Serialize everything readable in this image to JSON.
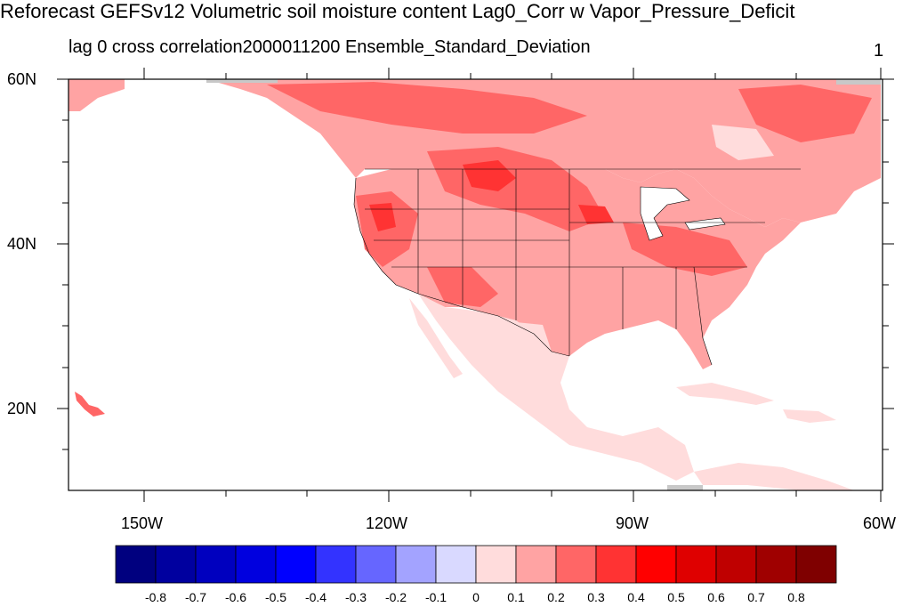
{
  "title": "Reforecast GEFSv12 Volumetric soil moisture content Lag0_Corr w Vapor_Pressure_Deficit",
  "subtitle_left": "lag 0 cross correlation2000011200 Ensemble_Standard_Deviation",
  "subtitle_right": "1",
  "map": {
    "lat_labels": [
      "60N",
      "40N",
      "20N"
    ],
    "lon_labels": [
      "150W",
      "120W",
      "90W",
      "60W"
    ],
    "region": "North America (CONUS, Canada, Mexico, Caribbean)",
    "dominant_values": "mostly 0.1 to 0.4 over land; ocean masked (white)"
  },
  "colorbar": {
    "labels": [
      "-0.8",
      "-0.7",
      "-0.6",
      "-0.5",
      "-0.4",
      "-0.3",
      "-0.2",
      "-0.1",
      "0",
      "0.1",
      "0.2",
      "0.3",
      "0.4",
      "0.5",
      "0.6",
      "0.7",
      "0.8"
    ],
    "colors": [
      "#00007f",
      "#00009f",
      "#0000bf",
      "#0000df",
      "#0000ff",
      "#3333ff",
      "#6666ff",
      "#a3a3ff",
      "#d9d9ff",
      "#ffdcdc",
      "#ffa3a3",
      "#ff6666",
      "#ff3333",
      "#ff0000",
      "#df0000",
      "#bf0000",
      "#9f0000",
      "#7f0000"
    ]
  },
  "colors": {
    "land_low": "#ffdcdc",
    "land_mid": "#ffa3a3",
    "land_high": "#ff6666",
    "land_peak": "#ff3333",
    "missing": "#c8c8c8"
  }
}
